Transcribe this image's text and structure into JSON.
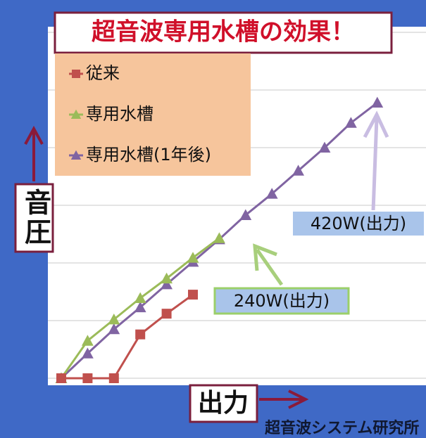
{
  "chart_data": {
    "type": "line",
    "title": "超音波専用水槽の効果！",
    "y_label": "音圧",
    "x_label": "出力",
    "categories": [
      null,
      null,
      null,
      null,
      null,
      null,
      null,
      null,
      null,
      null,
      null,
      null,
      null
    ],
    "ylim": [
      0,
      6
    ],
    "yticks": [
      0,
      1,
      2,
      3,
      4,
      5,
      6
    ],
    "grid": true,
    "legend": "upper left",
    "series": [
      {
        "name": "従来",
        "color": "#c0504d",
        "marker": "square",
        "values": [
          0,
          0,
          0,
          0.76,
          1.12,
          1.45,
          null,
          null,
          null,
          null,
          null,
          null,
          null
        ]
      },
      {
        "name": "専用水槽",
        "color": "#9bbb59",
        "marker": "triangle",
        "values": [
          0,
          0.65,
          1.02,
          1.39,
          1.73,
          2.09,
          2.43,
          null,
          null,
          null,
          null,
          null,
          null
        ]
      },
      {
        "name": "専用水槽(1年後)",
        "color": "#8064a2",
        "marker": "triangle",
        "values": [
          0,
          0.43,
          0.85,
          1.23,
          1.63,
          2.02,
          2.41,
          2.83,
          3.2,
          3.6,
          4.0,
          4.43,
          4.78
        ]
      }
    ],
    "annotations": [
      "420W(出力)",
      "240W(出力)"
    ],
    "footer": "超音波システム研究所"
  }
}
